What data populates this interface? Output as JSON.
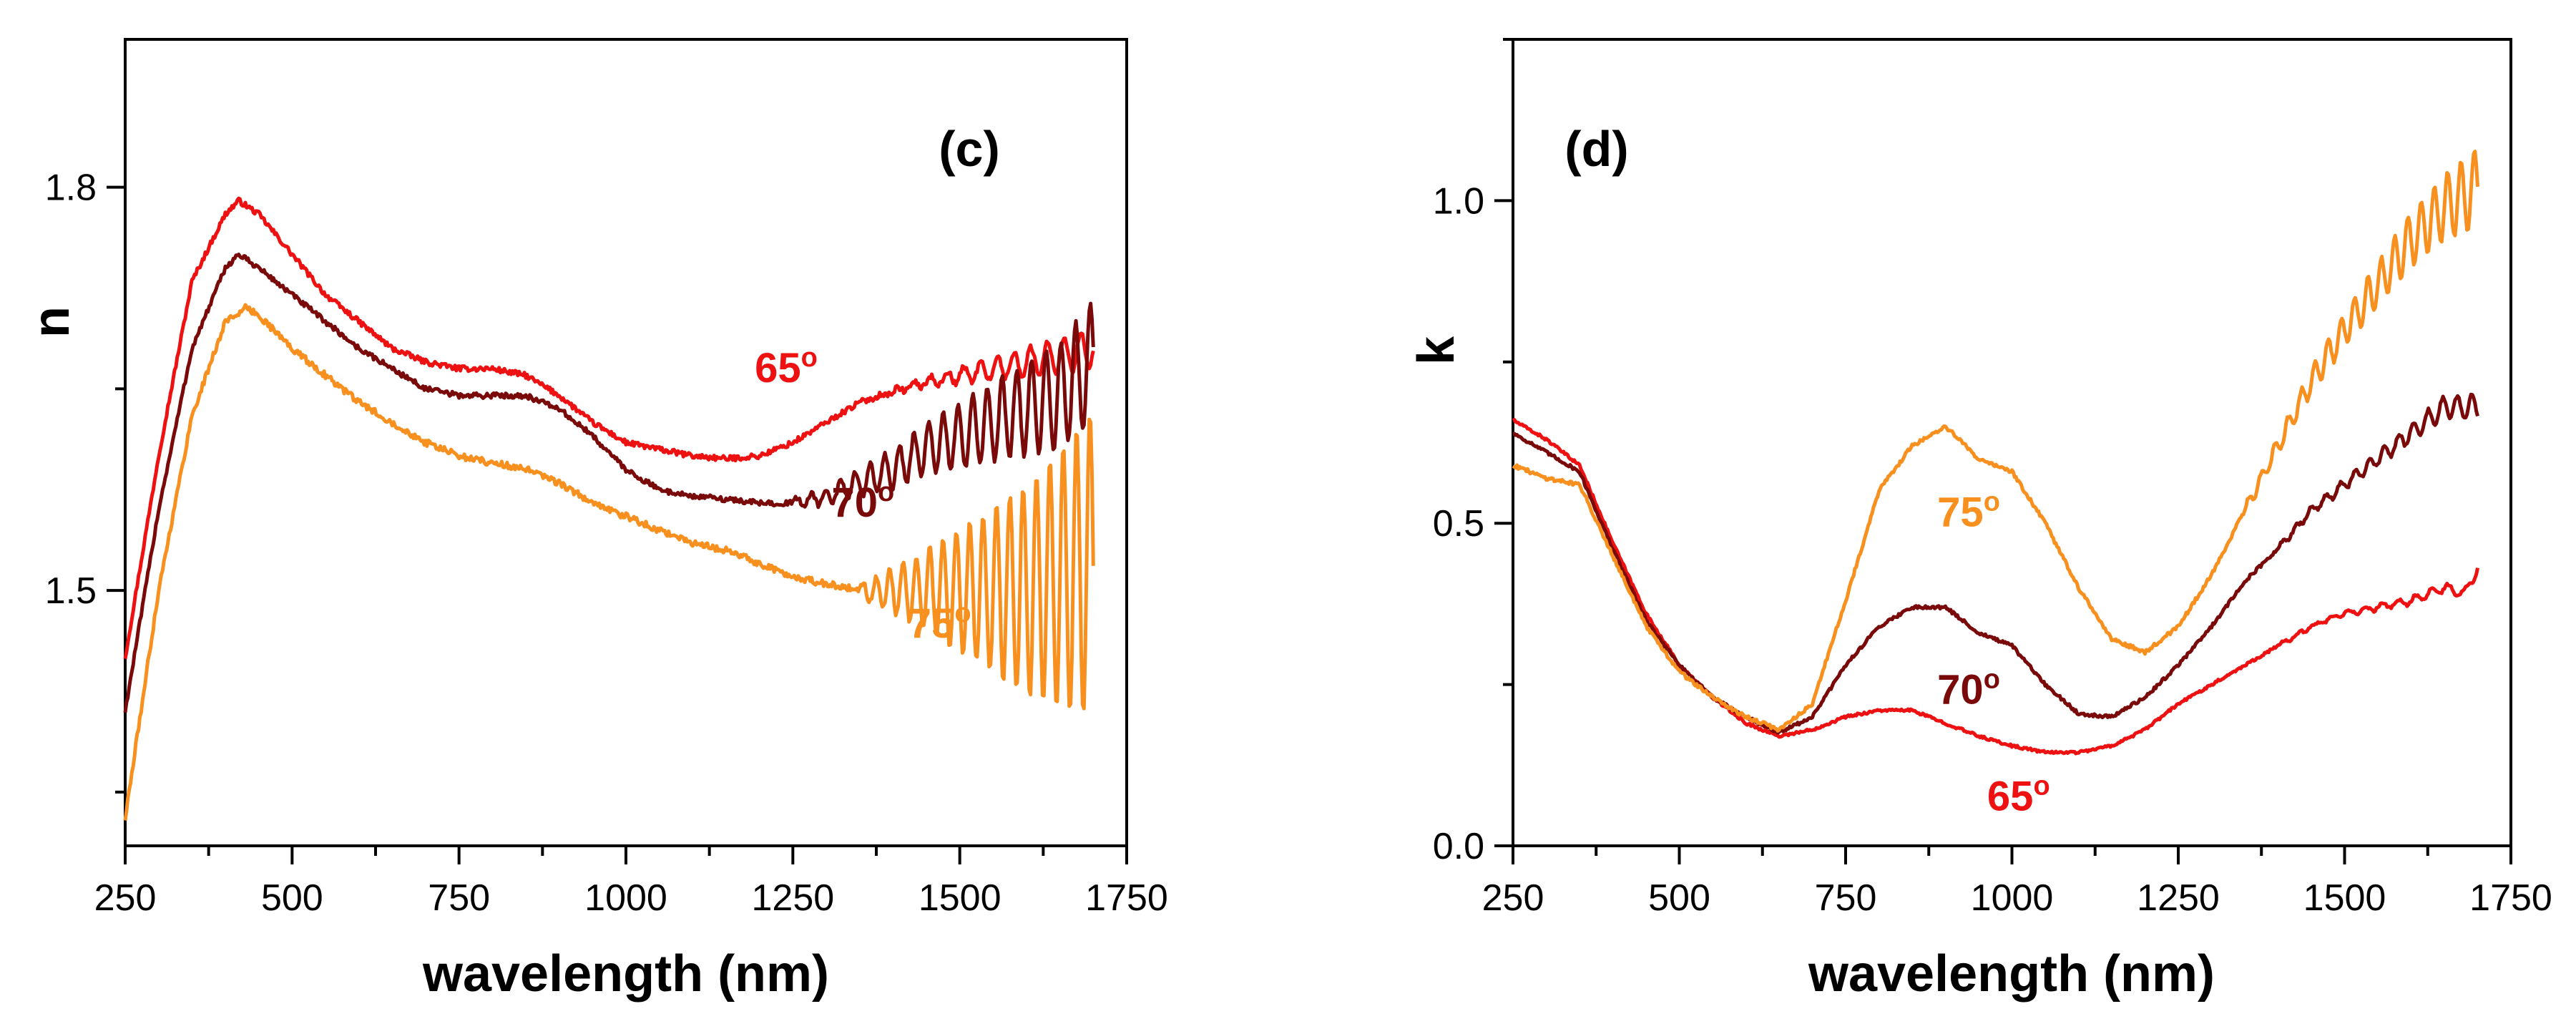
{
  "colors": {
    "s65": "#ee1111",
    "s70": "#7a0a0a",
    "s75": "#f7901e",
    "axis": "#000000"
  },
  "chart_data": [
    {
      "type": "line",
      "panel_label": "(c)",
      "xlabel": "wavelength (nm)",
      "ylabel": "n",
      "xlim": [
        250,
        1750
      ],
      "ylim": [
        1.31,
        1.91
      ],
      "xticks": [
        250,
        500,
        750,
        1000,
        1250,
        1500,
        1750
      ],
      "yticks": [
        1.5,
        1.8
      ],
      "xtick_labels": [
        "250",
        "500",
        "750",
        "1000",
        "1250",
        "1500",
        "1750"
      ],
      "ytick_labels": [
        "1.5",
        "1.8"
      ],
      "series": [
        {
          "name": "65",
          "label": "65",
          "label_sup": "o",
          "color_key": "s65",
          "label_anchor": [
            1240,
            1.655
          ],
          "osc_start": 1350,
          "osc_amp": [
            0.0,
            0.015
          ],
          "osc_period": 25,
          "noise": 0.004,
          "points": [
            [
              250,
              1.45
            ],
            [
              300,
              1.6
            ],
            [
              350,
              1.73
            ],
            [
              400,
              1.78
            ],
            [
              420,
              1.79
            ],
            [
              450,
              1.78
            ],
            [
              500,
              1.75
            ],
            [
              550,
              1.72
            ],
            [
              600,
              1.7
            ],
            [
              650,
              1.68
            ],
            [
              700,
              1.67
            ],
            [
              750,
              1.665
            ],
            [
              800,
              1.665
            ],
            [
              850,
              1.66
            ],
            [
              900,
              1.645
            ],
            [
              950,
              1.625
            ],
            [
              1000,
              1.61
            ],
            [
              1050,
              1.605
            ],
            [
              1100,
              1.6
            ],
            [
              1150,
              1.598
            ],
            [
              1200,
              1.6
            ],
            [
              1250,
              1.61
            ],
            [
              1300,
              1.625
            ],
            [
              1350,
              1.64
            ],
            [
              1400,
              1.648
            ],
            [
              1450,
              1.655
            ],
            [
              1500,
              1.66
            ],
            [
              1550,
              1.665
            ],
            [
              1600,
              1.67
            ],
            [
              1650,
              1.675
            ],
            [
              1700,
              1.68
            ]
          ]
        },
        {
          "name": "70",
          "label": "70",
          "label_sup": "o",
          "color_key": "s70",
          "label_anchor": [
            1355,
            1.555
          ],
          "osc_start": 1250,
          "osc_amp": [
            0.003,
            0.045
          ],
          "osc_period": 22,
          "noise": 0.004,
          "points": [
            [
              250,
              1.41
            ],
            [
              300,
              1.56
            ],
            [
              350,
              1.68
            ],
            [
              400,
              1.74
            ],
            [
              420,
              1.75
            ],
            [
              450,
              1.74
            ],
            [
              500,
              1.72
            ],
            [
              550,
              1.7
            ],
            [
              600,
              1.68
            ],
            [
              650,
              1.665
            ],
            [
              700,
              1.65
            ],
            [
              750,
              1.645
            ],
            [
              800,
              1.645
            ],
            [
              850,
              1.645
            ],
            [
              900,
              1.635
            ],
            [
              950,
              1.615
            ],
            [
              1000,
              1.59
            ],
            [
              1050,
              1.575
            ],
            [
              1100,
              1.57
            ],
            [
              1150,
              1.568
            ],
            [
              1200,
              1.565
            ],
            [
              1250,
              1.565
            ],
            [
              1300,
              1.57
            ],
            [
              1350,
              1.58
            ],
            [
              1400,
              1.59
            ],
            [
              1450,
              1.605
            ],
            [
              1500,
              1.615
            ],
            [
              1550,
              1.625
            ],
            [
              1600,
              1.635
            ],
            [
              1650,
              1.645
            ],
            [
              1700,
              1.67
            ]
          ]
        },
        {
          "name": "75",
          "label": "75",
          "label_sup": "o",
          "color_key": "s75",
          "label_anchor": [
            1470,
            1.465
          ],
          "osc_start": 1350,
          "osc_amp": [
            0.006,
            0.115
          ],
          "osc_period": 20,
          "noise": 0.005,
          "points": [
            [
              250,
              1.33
            ],
            [
              300,
              1.5
            ],
            [
              350,
              1.63
            ],
            [
              400,
              1.7
            ],
            [
              430,
              1.71
            ],
            [
              450,
              1.705
            ],
            [
              500,
              1.68
            ],
            [
              550,
              1.66
            ],
            [
              600,
              1.64
            ],
            [
              650,
              1.625
            ],
            [
              700,
              1.61
            ],
            [
              750,
              1.6
            ],
            [
              800,
              1.595
            ],
            [
              850,
              1.59
            ],
            [
              900,
              1.58
            ],
            [
              950,
              1.565
            ],
            [
              1000,
              1.555
            ],
            [
              1050,
              1.545
            ],
            [
              1100,
              1.535
            ],
            [
              1150,
              1.53
            ],
            [
              1200,
              1.52
            ],
            [
              1250,
              1.51
            ],
            [
              1300,
              1.505
            ],
            [
              1350,
              1.5
            ],
            [
              1400,
              1.5
            ],
            [
              1450,
              1.5
            ],
            [
              1500,
              1.5
            ],
            [
              1550,
              1.5
            ],
            [
              1600,
              1.5
            ],
            [
              1650,
              1.51
            ],
            [
              1700,
              1.52
            ]
          ]
        }
      ]
    },
    {
      "type": "line",
      "panel_label": "(d)",
      "xlabel": "wavelength (nm)",
      "ylabel": "k",
      "xlim": [
        250,
        1750
      ],
      "ylim": [
        0.0,
        1.25
      ],
      "xticks": [
        250,
        500,
        750,
        1000,
        1250,
        1500,
        1750
      ],
      "yticks": [
        0.0,
        0.5,
        1.0
      ],
      "xtick_labels": [
        "250",
        "500",
        "750",
        "1000",
        "1250",
        "1500",
        "1750"
      ],
      "ytick_labels": [
        "0.0",
        "0.5",
        "1.0"
      ],
      "series": [
        {
          "name": "65",
          "label": "65",
          "label_sup": "o",
          "color_key": "s65",
          "label_anchor": [
            1010,
            0.055
          ],
          "osc_start": 1400,
          "osc_amp": [
            0.002,
            0.008
          ],
          "osc_period": 25,
          "noise": 0.004,
          "points": [
            [
              250,
              0.66
            ],
            [
              300,
              0.63
            ],
            [
              350,
              0.59
            ],
            [
              400,
              0.47
            ],
            [
              450,
              0.36
            ],
            [
              500,
              0.28
            ],
            [
              550,
              0.23
            ],
            [
              600,
              0.19
            ],
            [
              650,
              0.17
            ],
            [
              700,
              0.18
            ],
            [
              750,
              0.2
            ],
            [
              800,
              0.21
            ],
            [
              850,
              0.21
            ],
            [
              900,
              0.19
            ],
            [
              950,
              0.17
            ],
            [
              1000,
              0.155
            ],
            [
              1050,
              0.145
            ],
            [
              1100,
              0.145
            ],
            [
              1150,
              0.155
            ],
            [
              1200,
              0.18
            ],
            [
              1250,
              0.22
            ],
            [
              1300,
              0.25
            ],
            [
              1350,
              0.28
            ],
            [
              1400,
              0.31
            ],
            [
              1450,
              0.34
            ],
            [
              1500,
              0.36
            ],
            [
              1550,
              0.37
            ],
            [
              1600,
              0.38
            ],
            [
              1650,
              0.4
            ],
            [
              1680,
              0.39
            ],
            [
              1700,
              0.43
            ]
          ]
        },
        {
          "name": "70",
          "label": "70",
          "label_sup": "o",
          "color_key": "s70",
          "label_anchor": [
            935,
            0.22
          ],
          "osc_start": 1400,
          "osc_amp": [
            0.004,
            0.02
          ],
          "osc_period": 22,
          "noise": 0.005,
          "points": [
            [
              250,
              0.64
            ],
            [
              300,
              0.61
            ],
            [
              350,
              0.58
            ],
            [
              400,
              0.46
            ],
            [
              450,
              0.35
            ],
            [
              500,
              0.28
            ],
            [
              550,
              0.23
            ],
            [
              600,
              0.2
            ],
            [
              650,
              0.175
            ],
            [
              700,
              0.2
            ],
            [
              750,
              0.28
            ],
            [
              800,
              0.34
            ],
            [
              850,
              0.37
            ],
            [
              900,
              0.37
            ],
            [
              950,
              0.33
            ],
            [
              1000,
              0.31
            ],
            [
              1050,
              0.25
            ],
            [
              1100,
              0.205
            ],
            [
              1150,
              0.2
            ],
            [
              1200,
              0.23
            ],
            [
              1250,
              0.28
            ],
            [
              1300,
              0.34
            ],
            [
              1350,
              0.41
            ],
            [
              1400,
              0.46
            ],
            [
              1450,
              0.52
            ],
            [
              1500,
              0.56
            ],
            [
              1550,
              0.6
            ],
            [
              1600,
              0.64
            ],
            [
              1650,
              0.68
            ],
            [
              1700,
              0.68
            ]
          ]
        },
        {
          "name": "75",
          "label": "75",
          "label_sup": "o",
          "color_key": "s75",
          "label_anchor": [
            935,
            0.495
          ],
          "osc_start": 1350,
          "osc_amp": [
            0.008,
            0.06
          ],
          "osc_period": 20,
          "noise": 0.006,
          "points": [
            [
              250,
              0.59
            ],
            [
              300,
              0.57
            ],
            [
              350,
              0.56
            ],
            [
              400,
              0.45
            ],
            [
              450,
              0.34
            ],
            [
              500,
              0.27
            ],
            [
              550,
              0.23
            ],
            [
              600,
              0.2
            ],
            [
              650,
              0.18
            ],
            [
              700,
              0.22
            ],
            [
              750,
              0.38
            ],
            [
              800,
              0.55
            ],
            [
              850,
              0.62
            ],
            [
              900,
              0.65
            ],
            [
              950,
              0.6
            ],
            [
              1000,
              0.58
            ],
            [
              1050,
              0.5
            ],
            [
              1100,
              0.4
            ],
            [
              1150,
              0.32
            ],
            [
              1200,
              0.3
            ],
            [
              1250,
              0.34
            ],
            [
              1300,
              0.42
            ],
            [
              1350,
              0.52
            ],
            [
              1400,
              0.62
            ],
            [
              1450,
              0.72
            ],
            [
              1500,
              0.8
            ],
            [
              1550,
              0.87
            ],
            [
              1600,
              0.94
            ],
            [
              1650,
              0.99
            ],
            [
              1700,
              1.02
            ]
          ]
        }
      ]
    }
  ]
}
